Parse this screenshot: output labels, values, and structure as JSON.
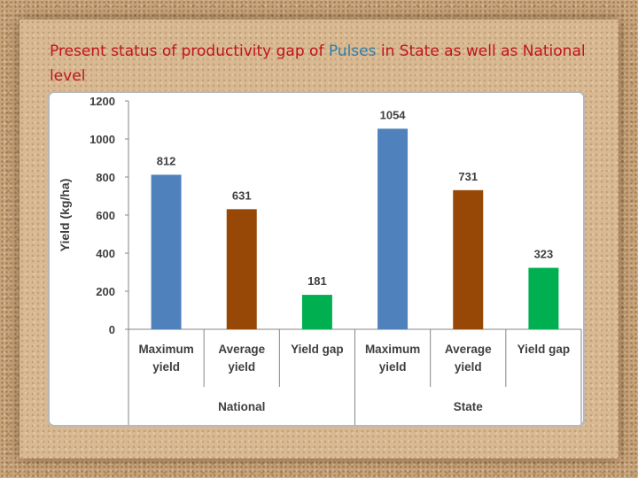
{
  "slide": {
    "title_part1": "Present status of productivity gap of ",
    "title_highlight": "Pulses",
    "title_part2": " in State as well as National level"
  },
  "colors": {
    "title": "#c0141c",
    "highlight": "#2e7fa8",
    "maximum_yield": "#4f81bd",
    "average_yield": "#974806",
    "yield_gap": "#00b050"
  },
  "chart_data": {
    "type": "bar",
    "title": "",
    "xlabel": "",
    "ylabel": "Yield (kg/ha)",
    "ylim": [
      0,
      1200
    ],
    "yticks": [
      0,
      200,
      400,
      600,
      800,
      1000,
      1200
    ],
    "grid": false,
    "legend": "none",
    "groups": [
      {
        "name": "National",
        "bars": [
          {
            "category": "Maximum yield",
            "label_lines": [
              "Maximum",
              "yield"
            ],
            "value": 812,
            "color": "#4f81bd"
          },
          {
            "category": "Average yield",
            "label_lines": [
              "Average",
              "yield"
            ],
            "value": 631,
            "color": "#974806"
          },
          {
            "category": "Yield gap",
            "label_lines": [
              "Yield gap"
            ],
            "value": 181,
            "color": "#00b050"
          }
        ]
      },
      {
        "name": "State",
        "bars": [
          {
            "category": "Maximum yield",
            "label_lines": [
              "Maximum",
              "yield"
            ],
            "value": 1054,
            "color": "#4f81bd"
          },
          {
            "category": "Average yield",
            "label_lines": [
              "Average",
              "yield"
            ],
            "value": 731,
            "color": "#974806"
          },
          {
            "category": "Yield gap",
            "label_lines": [
              "Yield gap"
            ],
            "value": 323,
            "color": "#00b050"
          }
        ]
      }
    ]
  }
}
